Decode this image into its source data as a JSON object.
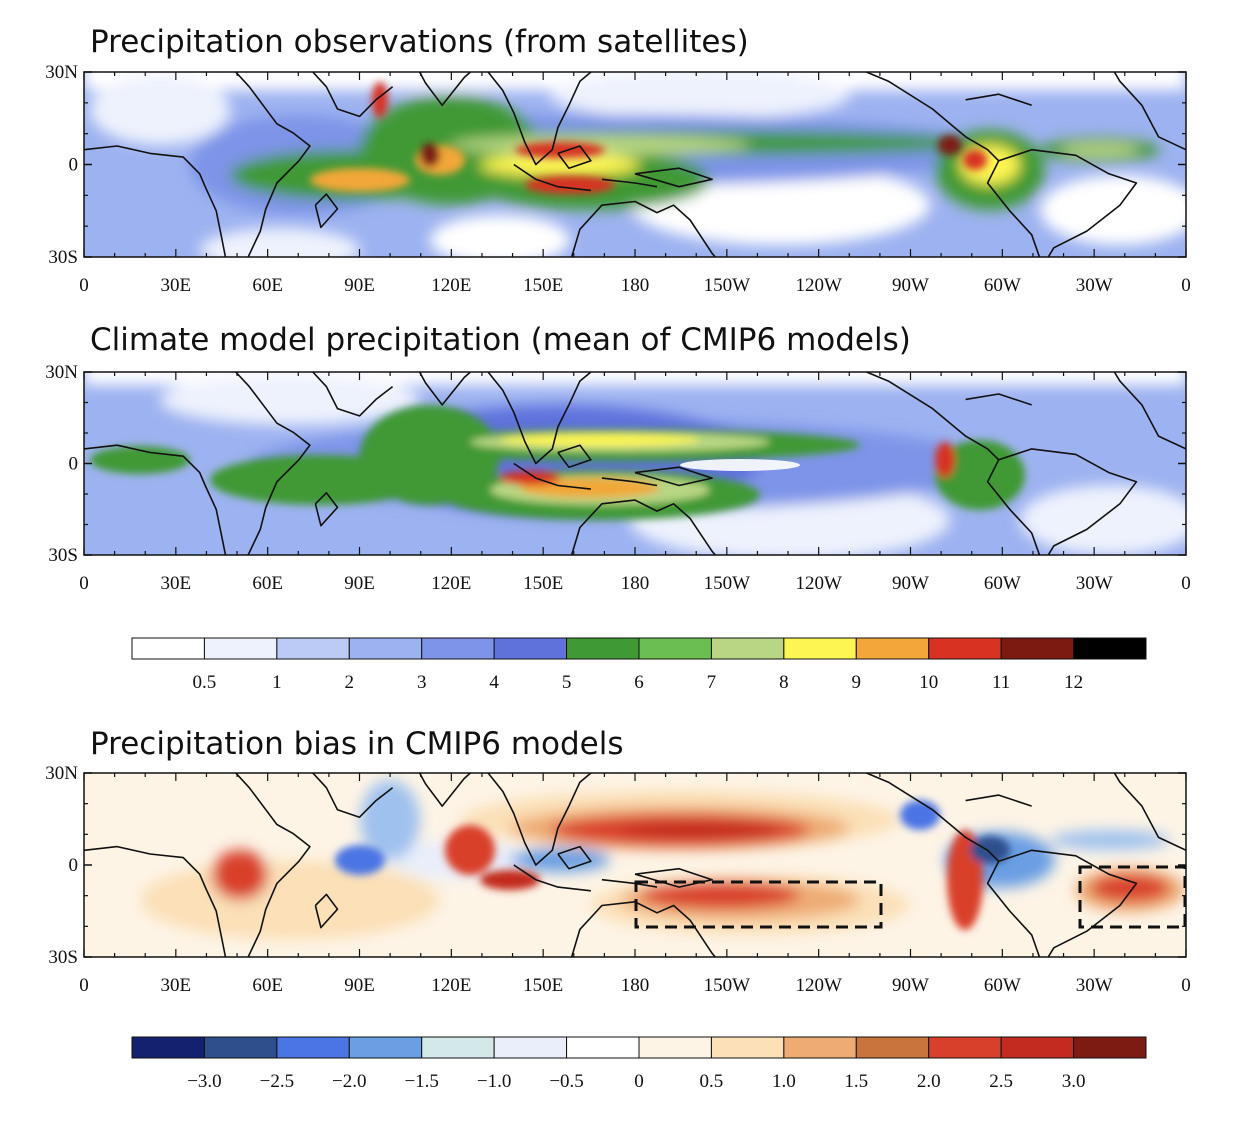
{
  "panels": [
    {
      "title": "Precipitation observations (from satellites)"
    },
    {
      "title": "Climate model precipitation (mean of CMIP6 models)"
    },
    {
      "title": "Precipitation bias in CMIP6 models"
    }
  ],
  "lat_labels": [
    "30N",
    "0",
    "30S"
  ],
  "lon_labels": [
    "0",
    "30E",
    "60E",
    "90E",
    "120E",
    "150E",
    "180",
    "150W",
    "120W",
    "90W",
    "60W",
    "30W",
    "0"
  ],
  "colorbar_precip": {
    "labels": [
      "0.5",
      "1",
      "2",
      "3",
      "4",
      "5",
      "6",
      "7",
      "8",
      "9",
      "10",
      "11",
      "12"
    ],
    "colors": [
      "#ffffff",
      "#eef2fd",
      "#bccbf5",
      "#9db2f0",
      "#7e94e8",
      "#5f72dc",
      "#3f9935",
      "#6abf50",
      "#b8d683",
      "#fdf551",
      "#f2a738",
      "#d73222",
      "#7c1a12",
      "#000000"
    ]
  },
  "colorbar_bias": {
    "labels": [
      "−3.0",
      "−2.5",
      "−2.0",
      "−1.5",
      "−1.0",
      "−0.5",
      "0",
      "0.5",
      "1.0",
      "1.5",
      "2.0",
      "2.5",
      "3.0"
    ],
    "colors": [
      "#13216e",
      "#2e4f8c",
      "#4b74e4",
      "#6b9fe3",
      "#d3e9e9",
      "#e9eefa",
      "#ffffff",
      "#fdf4e6",
      "#fbe0b8",
      "#eeac74",
      "#c8743c",
      "#d9402b",
      "#c22c1f",
      "#7d1a12"
    ]
  },
  "colors": {
    "coast": "#111111",
    "dash_box": "#111111"
  }
}
